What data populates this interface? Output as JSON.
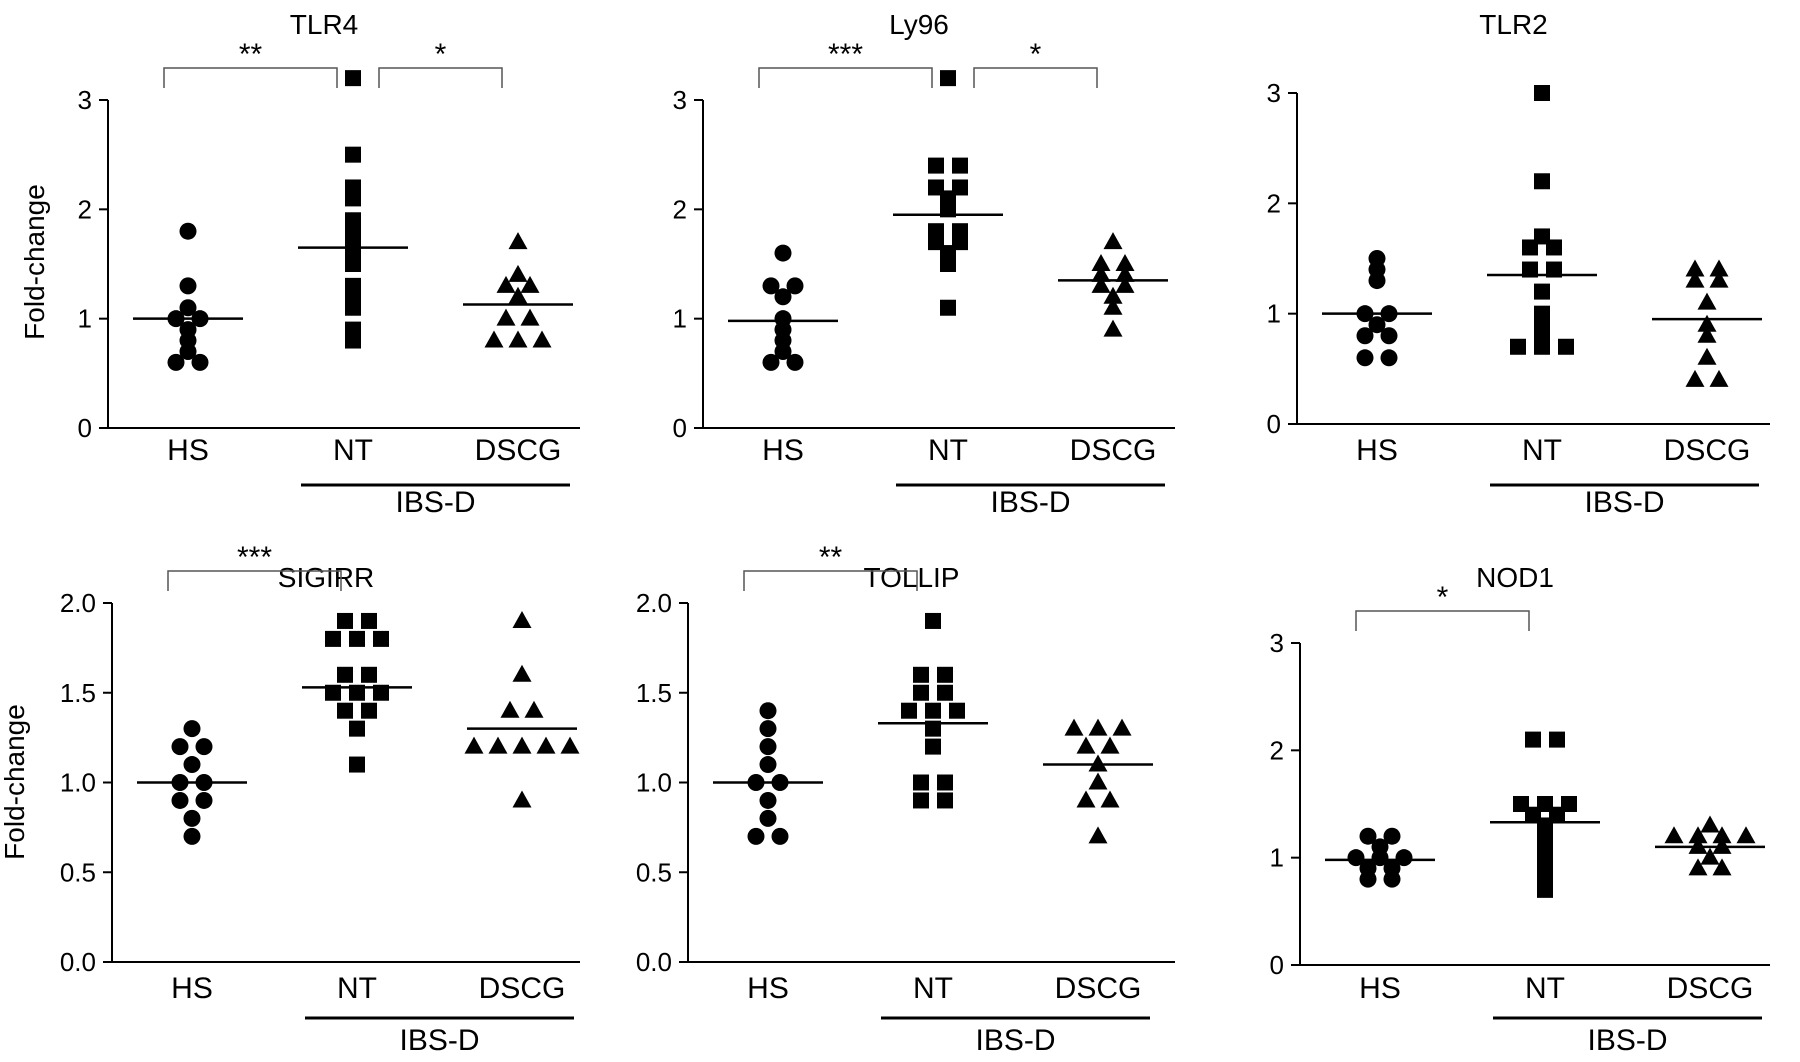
{
  "chart_data": [
    {
      "type": "scatter",
      "title": "TLR4",
      "ylabel": "Fold-change",
      "ylim": [
        0,
        3
      ],
      "yticks": [
        "0",
        "1",
        "2",
        "3"
      ],
      "categories": [
        "HS",
        "NT",
        "DSCG"
      ],
      "group_label": "IBS-D",
      "series": [
        {
          "category": "HS",
          "marker": "circle",
          "mean": 1.0,
          "values": [
            1.8,
            1.3,
            1.1,
            1.0,
            1.0,
            0.9,
            0.8,
            0.7,
            0.6,
            0.6
          ]
        },
        {
          "category": "NT",
          "marker": "square",
          "mean": 1.65,
          "values": [
            3.2,
            2.5,
            2.2,
            2.1,
            1.9,
            1.8,
            1.7,
            1.6,
            1.5,
            1.3,
            1.2,
            1.1,
            0.9,
            0.8
          ]
        },
        {
          "category": "DSCG",
          "marker": "triangle",
          "mean": 1.13,
          "values": [
            1.7,
            1.4,
            1.3,
            1.3,
            1.2,
            1.0,
            1.0,
            0.8,
            0.8,
            0.8
          ]
        }
      ],
      "significance": [
        {
          "from": "HS",
          "to": "NT",
          "label": "**"
        },
        {
          "from": "NT",
          "to": "DSCG",
          "label": "*"
        }
      ]
    },
    {
      "type": "scatter",
      "title": "Ly96",
      "ylabel": "",
      "ylim": [
        0,
        3
      ],
      "yticks": [
        "0",
        "1",
        "2",
        "3"
      ],
      "categories": [
        "HS",
        "NT",
        "DSCG"
      ],
      "group_label": "IBS-D",
      "series": [
        {
          "category": "HS",
          "marker": "circle",
          "mean": 0.98,
          "values": [
            1.6,
            1.3,
            1.3,
            1.2,
            1.0,
            0.9,
            0.8,
            0.7,
            0.6,
            0.6
          ]
        },
        {
          "category": "NT",
          "marker": "square",
          "mean": 1.95,
          "values": [
            3.2,
            2.4,
            2.4,
            2.2,
            2.2,
            2.1,
            2.0,
            1.8,
            1.8,
            1.7,
            1.7,
            1.6,
            1.5,
            1.1
          ]
        },
        {
          "category": "DSCG",
          "marker": "triangle",
          "mean": 1.35,
          "values": [
            1.7,
            1.5,
            1.5,
            1.4,
            1.4,
            1.3,
            1.3,
            1.2,
            1.1,
            0.9
          ]
        }
      ],
      "significance": [
        {
          "from": "HS",
          "to": "NT",
          "label": "***"
        },
        {
          "from": "NT",
          "to": "DSCG",
          "label": "*"
        }
      ]
    },
    {
      "type": "scatter",
      "title": "TLR2",
      "ylabel": "",
      "ylim": [
        0,
        3
      ],
      "yticks": [
        "0",
        "1",
        "2",
        "3"
      ],
      "categories": [
        "HS",
        "NT",
        "DSCG"
      ],
      "group_label": "IBS-D",
      "series": [
        {
          "category": "HS",
          "marker": "circle",
          "mean": 1.0,
          "values": [
            1.5,
            1.4,
            1.3,
            1.0,
            1.0,
            0.9,
            0.8,
            0.8,
            0.6,
            0.6
          ]
        },
        {
          "category": "NT",
          "marker": "square",
          "mean": 1.35,
          "values": [
            3.0,
            2.2,
            1.7,
            1.6,
            1.6,
            1.4,
            1.4,
            1.2,
            1.0,
            0.9,
            0.8,
            0.7,
            0.7,
            0.7
          ]
        },
        {
          "category": "DSCG",
          "marker": "triangle",
          "mean": 0.95,
          "values": [
            1.4,
            1.4,
            1.3,
            1.3,
            1.1,
            0.9,
            0.8,
            0.6,
            0.4,
            0.4
          ]
        }
      ],
      "significance": []
    },
    {
      "type": "scatter",
      "title": "SIGIRR",
      "ylabel": "Fold-change",
      "ylim": [
        0,
        2
      ],
      "yticks": [
        "0.0",
        "0.5",
        "1.0",
        "1.5",
        "2.0"
      ],
      "categories": [
        "HS",
        "NT",
        "DSCG"
      ],
      "group_label": "IBS-D",
      "series": [
        {
          "category": "HS",
          "marker": "circle",
          "mean": 1.0,
          "values": [
            1.3,
            1.2,
            1.2,
            1.1,
            1.0,
            1.0,
            0.9,
            0.9,
            0.8,
            0.7
          ]
        },
        {
          "category": "NT",
          "marker": "square",
          "mean": 1.53,
          "values": [
            1.9,
            1.9,
            1.8,
            1.8,
            1.8,
            1.6,
            1.6,
            1.5,
            1.5,
            1.5,
            1.4,
            1.4,
            1.3,
            1.1
          ]
        },
        {
          "category": "DSCG",
          "marker": "triangle",
          "mean": 1.3,
          "values": [
            1.9,
            1.6,
            1.4,
            1.4,
            1.2,
            1.2,
            1.2,
            1.2,
            1.2,
            0.9
          ]
        }
      ],
      "significance": [
        {
          "from": "HS",
          "to": "NT",
          "label": "***"
        }
      ]
    },
    {
      "type": "scatter",
      "title": "TOLLIP",
      "ylabel": "",
      "ylim": [
        0,
        2
      ],
      "yticks": [
        "0.0",
        "0.5",
        "1.0",
        "1.5",
        "2.0"
      ],
      "categories": [
        "HS",
        "NT",
        "DSCG"
      ],
      "group_label": "IBS-D",
      "series": [
        {
          "category": "HS",
          "marker": "circle",
          "mean": 1.0,
          "values": [
            1.4,
            1.3,
            1.2,
            1.1,
            1.0,
            1.0,
            0.9,
            0.8,
            0.7,
            0.7
          ]
        },
        {
          "category": "NT",
          "marker": "square",
          "mean": 1.33,
          "values": [
            1.9,
            1.6,
            1.6,
            1.5,
            1.5,
            1.4,
            1.4,
            1.4,
            1.3,
            1.2,
            1.0,
            1.0,
            0.9,
            0.9
          ]
        },
        {
          "category": "DSCG",
          "marker": "triangle",
          "mean": 1.1,
          "values": [
            1.3,
            1.3,
            1.3,
            1.2,
            1.2,
            1.1,
            1.0,
            0.9,
            0.9,
            0.7
          ]
        }
      ],
      "significance": [
        {
          "from": "HS",
          "to": "NT",
          "label": "**"
        }
      ]
    },
    {
      "type": "scatter",
      "title": "NOD1",
      "ylabel": "",
      "ylim": [
        0,
        3
      ],
      "yticks": [
        "0",
        "1",
        "2",
        "3"
      ],
      "categories": [
        "HS",
        "NT",
        "DSCG"
      ],
      "group_label": "IBS-D",
      "series": [
        {
          "category": "HS",
          "marker": "circle",
          "mean": 0.98,
          "values": [
            1.2,
            1.2,
            1.1,
            1.0,
            1.0,
            1.0,
            0.9,
            0.9,
            0.8,
            0.8
          ]
        },
        {
          "category": "NT",
          "marker": "square",
          "mean": 1.33,
          "values": [
            2.1,
            2.1,
            1.5,
            1.5,
            1.5,
            1.4,
            1.4,
            1.3,
            1.2,
            1.1,
            1.0,
            0.9,
            0.8,
            0.7
          ]
        },
        {
          "category": "DSCG",
          "marker": "triangle",
          "mean": 1.1,
          "values": [
            1.3,
            1.2,
            1.2,
            1.2,
            1.2,
            1.1,
            1.1,
            1.0,
            0.9,
            0.9
          ]
        }
      ],
      "significance": [
        {
          "from": "HS",
          "to": "NT",
          "label": "*"
        }
      ]
    }
  ]
}
